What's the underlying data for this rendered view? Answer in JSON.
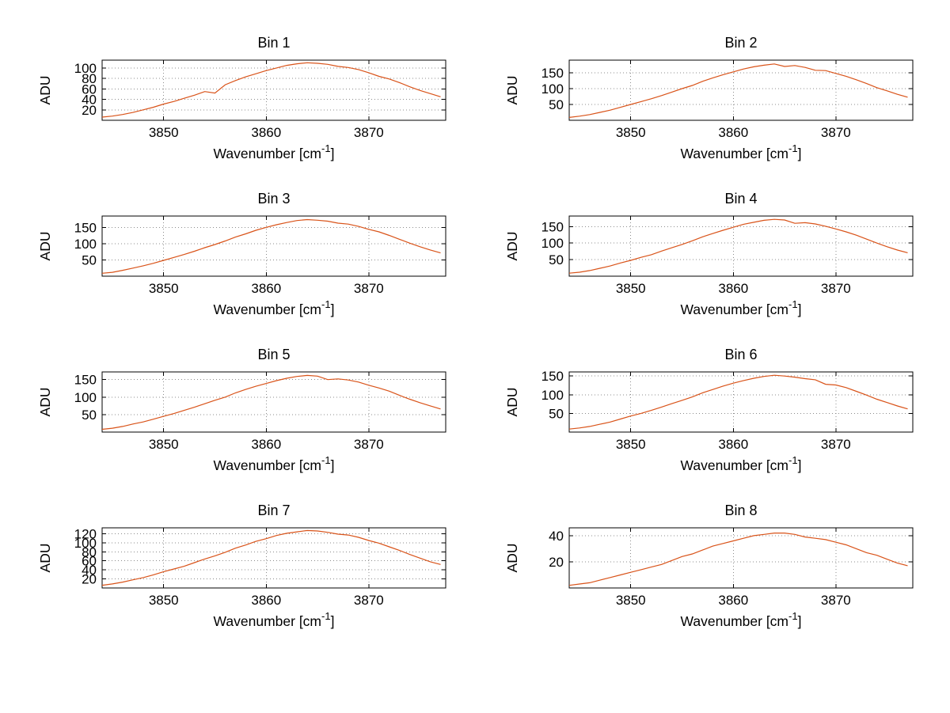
{
  "figure": {
    "background": "#ffffff"
  },
  "chart_data": {
    "type": "line",
    "layout": "4x2 grid of subplots",
    "grid": "dotted",
    "line_color": "#d95319",
    "ylabel": "ADU",
    "xlabel": {
      "pre": "Wavenumber [cm",
      "sup": "-1",
      "post": "]"
    },
    "xlim": [
      3844,
      3877.5
    ],
    "xticks": [
      3850,
      3860,
      3870
    ],
    "x": [
      3844,
      3845,
      3846,
      3847,
      3848,
      3849,
      3850,
      3851,
      3852,
      3853,
      3854,
      3855,
      3856,
      3857,
      3858,
      3859,
      3860,
      3861,
      3862,
      3863,
      3864,
      3865,
      3866,
      3867,
      3868,
      3869,
      3870,
      3871,
      3872,
      3873,
      3874,
      3875,
      3876,
      3877
    ],
    "subplots": [
      {
        "title": "Bin 1",
        "ylim": [
          0,
          115
        ],
        "yticks": [
          20,
          40,
          60,
          80,
          100
        ],
        "y": [
          6,
          8,
          11,
          15,
          20,
          25,
          31,
          36,
          42,
          48,
          55,
          52,
          68,
          76,
          83,
          89,
          95,
          100,
          105,
          108,
          110,
          109,
          107,
          103,
          101,
          97,
          91,
          84,
          79,
          72,
          64,
          57,
          51,
          45
        ]
      },
      {
        "title": "Bin 2",
        "ylim": [
          0,
          190
        ],
        "yticks": [
          50,
          100,
          150
        ],
        "y": [
          9,
          13,
          18,
          25,
          32,
          41,
          50,
          59,
          68,
          78,
          89,
          100,
          110,
          123,
          134,
          144,
          153,
          162,
          169,
          174,
          178,
          170,
          173,
          167,
          158,
          157,
          148,
          139,
          128,
          116,
          103,
          93,
          82,
          73
        ]
      },
      {
        "title": "Bin 3",
        "ylim": [
          0,
          186
        ],
        "yticks": [
          50,
          100,
          150
        ],
        "y": [
          9,
          12,
          18,
          25,
          32,
          40,
          49,
          58,
          67,
          77,
          88,
          98,
          109,
          121,
          131,
          142,
          151,
          159,
          166,
          172,
          175,
          173,
          170,
          164,
          161,
          154,
          145,
          137,
          126,
          114,
          102,
          91,
          81,
          72
        ]
      },
      {
        "title": "Bin 4",
        "ylim": [
          0,
          182
        ],
        "yticks": [
          50,
          100,
          150
        ],
        "y": [
          9,
          12,
          17,
          24,
          31,
          40,
          48,
          57,
          65,
          76,
          86,
          96,
          107,
          119,
          129,
          139,
          148,
          157,
          163,
          169,
          172,
          170,
          160,
          162,
          158,
          151,
          143,
          134,
          124,
          112,
          100,
          89,
          79,
          71
        ]
      },
      {
        "title": "Bin 5",
        "ylim": [
          0,
          172
        ],
        "yticks": [
          50,
          100,
          150
        ],
        "y": [
          8,
          11,
          16,
          23,
          29,
          37,
          45,
          53,
          62,
          71,
          81,
          91,
          100,
          112,
          122,
          131,
          139,
          147,
          154,
          159,
          162,
          160,
          150,
          152,
          149,
          143,
          134,
          126,
          117,
          105,
          94,
          84,
          75,
          66
        ]
      },
      {
        "title": "Bin 6",
        "ylim": [
          0,
          161
        ],
        "yticks": [
          50,
          100,
          150
        ],
        "y": [
          8,
          11,
          15,
          21,
          27,
          35,
          43,
          50,
          58,
          67,
          76,
          85,
          94,
          105,
          114,
          123,
          131,
          138,
          144,
          149,
          152,
          150,
          147,
          143,
          140,
          128,
          126,
          119,
          109,
          99,
          88,
          79,
          70,
          62
        ]
      },
      {
        "title": "Bin 7",
        "ylim": [
          0,
          133
        ],
        "yticks": [
          20,
          40,
          60,
          80,
          100,
          120
        ],
        "y": [
          6,
          9,
          13,
          18,
          23,
          29,
          36,
          42,
          48,
          56,
          64,
          71,
          79,
          88,
          95,
          103,
          109,
          116,
          121,
          124,
          127,
          126,
          123,
          119,
          117,
          112,
          105,
          99,
          91,
          83,
          74,
          66,
          58,
          52
        ]
      },
      {
        "title": "Bin 8",
        "ylim": [
          0,
          46
        ],
        "yticks": [
          20,
          40
        ],
        "y": [
          2,
          3,
          4,
          6,
          8,
          10,
          12,
          14,
          16,
          18,
          21,
          24,
          26,
          29,
          32,
          34,
          36,
          38,
          40,
          41,
          42,
          42,
          41,
          39,
          38,
          37,
          35,
          33,
          30,
          27,
          25,
          22,
          19,
          17
        ]
      }
    ]
  }
}
